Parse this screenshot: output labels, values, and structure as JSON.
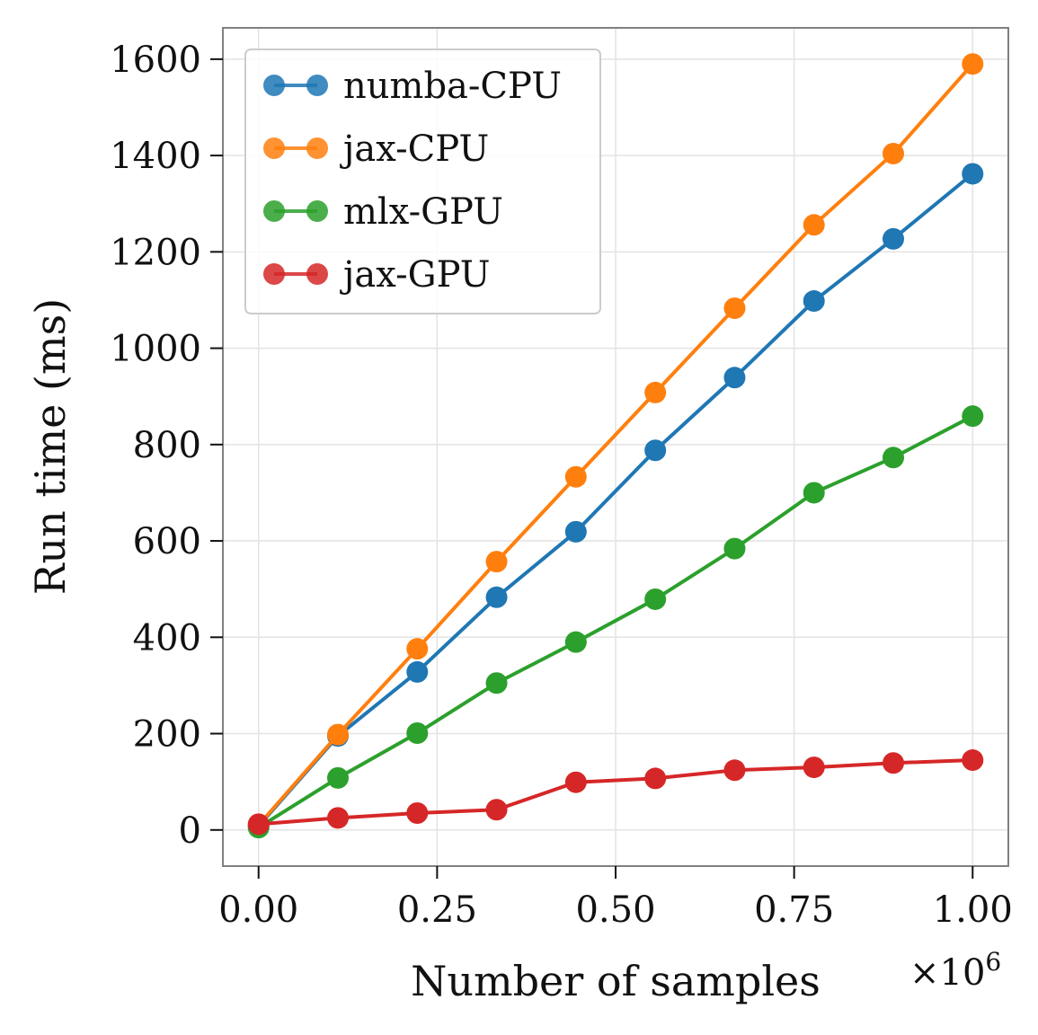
{
  "chart_data": {
    "type": "line",
    "title": "",
    "xlabel": "Number of samples",
    "ylabel": "Run time (ms)",
    "x_multiplier_label": "×10",
    "x_multiplier_exp": "6",
    "xlim": [
      -0.05,
      1.05
    ],
    "ylim": [
      -75,
      1665
    ],
    "xticks": [
      0.0,
      0.25,
      0.5,
      0.75,
      1.0
    ],
    "xtick_labels": [
      "0.00",
      "0.25",
      "0.50",
      "0.75",
      "1.00"
    ],
    "yticks": [
      0,
      200,
      400,
      600,
      800,
      1000,
      1200,
      1400,
      1600
    ],
    "ytick_labels": [
      "0",
      "200",
      "400",
      "600",
      "800",
      "1000",
      "1200",
      "1400",
      "1600"
    ],
    "grid": true,
    "legend_position": "top-left",
    "x": [
      0.0,
      0.1111,
      0.2222,
      0.3333,
      0.4444,
      0.5556,
      0.6667,
      0.7778,
      0.8889,
      1.0
    ],
    "series": [
      {
        "name": "numba-CPU",
        "color": "#1f77b4",
        "values": [
          8,
          195,
          328,
          483,
          619,
          788,
          939,
          1098,
          1227,
          1362
        ]
      },
      {
        "name": "jax-CPU",
        "color": "#ff7f0e",
        "values": [
          10,
          198,
          376,
          557,
          733,
          908,
          1083,
          1256,
          1404,
          1590
        ]
      },
      {
        "name": "mlx-GPU",
        "color": "#2ca02c",
        "values": [
          5,
          108,
          201,
          305,
          390,
          479,
          584,
          700,
          773,
          859
        ]
      },
      {
        "name": "jax-GPU",
        "color": "#d62728",
        "values": [
          12,
          25,
          35,
          42,
          99,
          107,
          124,
          130,
          139,
          145
        ]
      }
    ]
  }
}
